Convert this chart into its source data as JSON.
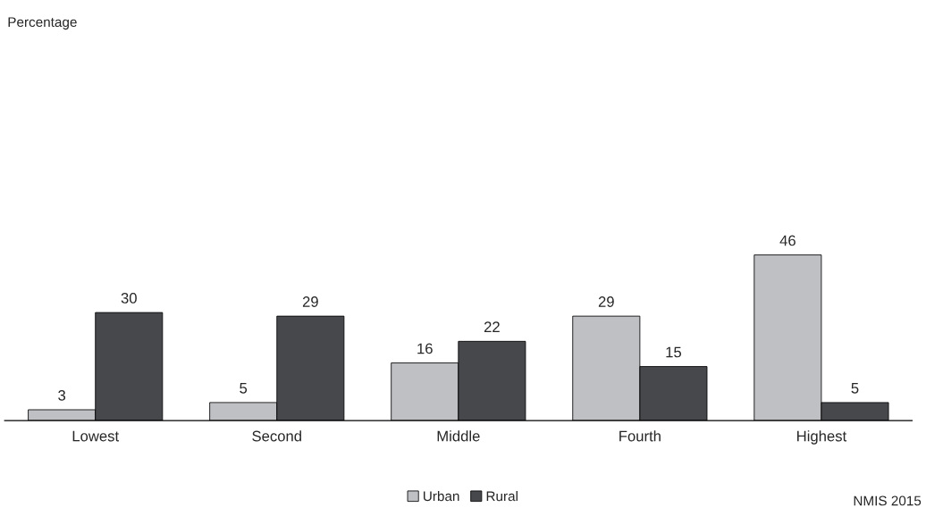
{
  "chart_data": {
    "type": "bar",
    "categories": [
      "Lowest",
      "Second",
      "Middle",
      "Fourth",
      "Highest"
    ],
    "series": [
      {
        "name": "Urban",
        "color": "#bfc0c4",
        "values": [
          3,
          5,
          16,
          29,
          46
        ]
      },
      {
        "name": "Rural",
        "color": "#47484c",
        "values": [
          30,
          29,
          22,
          15,
          5
        ]
      }
    ],
    "data_labels": true,
    "legend": "bottom",
    "grid": false,
    "tick_labels": "x",
    "annotations": [
      "Percentage",
      "NMIS 2015"
    ]
  }
}
